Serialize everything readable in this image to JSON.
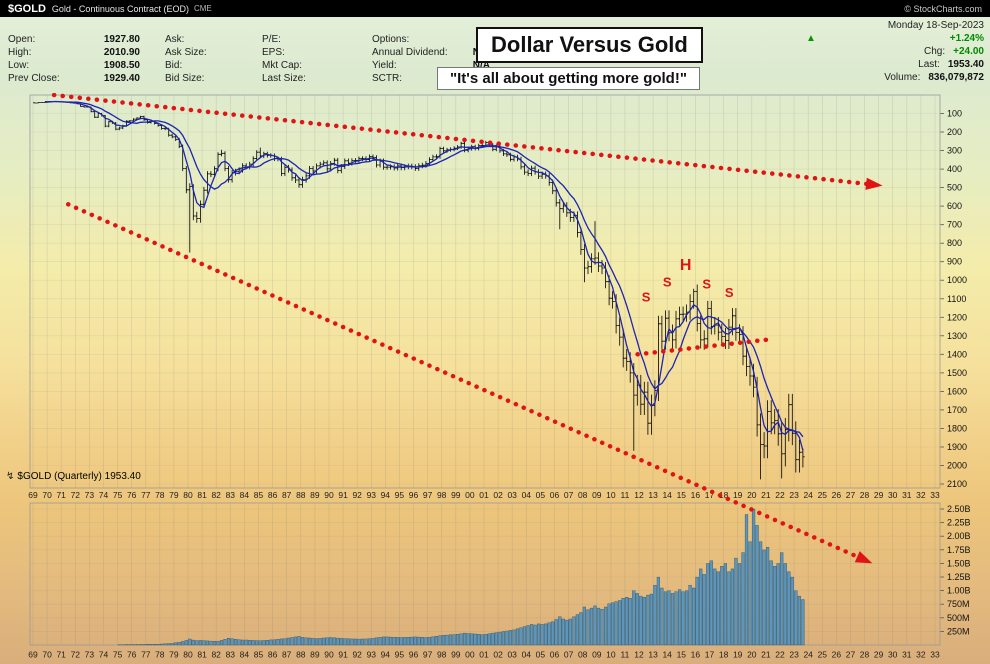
{
  "header": {
    "symbol": "$GOLD",
    "name": "Gold - Continuous Contract (EOD)",
    "exchange": "CME",
    "brand": "© StockCharts.com"
  },
  "overlay": {
    "title": "Dollar Versus Gold",
    "quote_text": "\"It's all about getting more gold!\""
  },
  "footer": {
    "label": "$GOLD (Quarterly) 1953.40"
  },
  "icons": {
    "up_triangle": "▲",
    "chart_type": "↯"
  },
  "info": {
    "col1": [
      {
        "label": "Open:",
        "value": "1927.80"
      },
      {
        "label": "High:",
        "value": "2010.90"
      },
      {
        "label": "Low:",
        "value": "1908.50"
      },
      {
        "label": "Prev Close:",
        "value": "1929.40"
      }
    ],
    "col2": [
      {
        "label": "Ask:",
        "value": ""
      },
      {
        "label": "Ask Size:",
        "value": ""
      },
      {
        "label": "Bid:",
        "value": ""
      },
      {
        "label": "Bid Size:",
        "value": ""
      }
    ],
    "col3": [
      {
        "label": "P/E:",
        "value": ""
      },
      {
        "label": "EPS:",
        "value": ""
      },
      {
        "label": "Mkt Cap:",
        "value": ""
      },
      {
        "label": "Last Size:",
        "value": ""
      }
    ],
    "col4": [
      {
        "label": "Options:",
        "value": "no"
      },
      {
        "label": "Annual Dividend:",
        "value": "N/A"
      },
      {
        "label": "Yield:",
        "value": "N/A"
      },
      {
        "label": "SCTR:",
        "value": ""
      }
    ],
    "right": {
      "date": "Monday 18-Sep-2023",
      "pct_change": "+1.24%",
      "chg_label": "Chg:",
      "chg_value": "+24.00",
      "last_label": "Last:",
      "last_value": "1953.40",
      "vol_label": "Volume:",
      "vol_value": "836,079,872"
    }
  },
  "chart_data": {
    "type": "ohlc",
    "symbol": "$GOLD",
    "period": "Quarterly",
    "title": "Dollar Versus Gold",
    "axis_note": "y-axis inverted: gold price increases downward",
    "start_year": 1969,
    "end_year_axis": 2033,
    "y_ticks": [
      100,
      200,
      300,
      400,
      500,
      600,
      700,
      800,
      900,
      1000,
      1100,
      1200,
      1300,
      1400,
      1500,
      1600,
      1700,
      1800,
      1900,
      2000,
      2100
    ],
    "volume_ticks": [
      {
        "v": 2500,
        "label": "2.50B"
      },
      {
        "v": 2250,
        "label": "2.25B"
      },
      {
        "v": 2000,
        "label": "2.00B"
      },
      {
        "v": 1750,
        "label": "1.75B"
      },
      {
        "v": 1500,
        "label": "1.50B"
      },
      {
        "v": 1250,
        "label": "1.25B"
      },
      {
        "v": 1000,
        "label": "1.00B"
      },
      {
        "v": 750,
        "label": "750M"
      },
      {
        "v": 500,
        "label": "500M"
      },
      {
        "v": 250,
        "label": "250M"
      }
    ],
    "x_ticks": [
      "69",
      "70",
      "71",
      "72",
      "73",
      "74",
      "75",
      "76",
      "77",
      "78",
      "79",
      "80",
      "81",
      "82",
      "83",
      "84",
      "85",
      "86",
      "87",
      "88",
      "89",
      "90",
      "91",
      "92",
      "93",
      "94",
      "95",
      "96",
      "97",
      "98",
      "99",
      "00",
      "01",
      "02",
      "03",
      "04",
      "05",
      "06",
      "07",
      "08",
      "09",
      "10",
      "11",
      "12",
      "13",
      "14",
      "15",
      "16",
      "17",
      "18",
      "19",
      "20",
      "21",
      "22",
      "23",
      "24",
      "25",
      "26",
      "27",
      "28",
      "29",
      "30",
      "31",
      "32",
      "33"
    ],
    "first_open": 42,
    "closes": [
      43,
      41,
      40,
      35,
      35,
      35,
      36,
      37,
      39,
      40,
      42,
      44,
      48,
      62,
      65,
      65,
      90,
      120,
      100,
      112,
      168,
      144,
      151,
      184,
      178,
      166,
      141,
      140,
      130,
      124,
      116,
      134,
      149,
      143,
      154,
      165,
      181,
      183,
      217,
      226,
      240,
      277,
      397,
      512,
      494,
      653,
      666,
      590,
      514,
      426,
      428,
      398,
      320,
      315,
      397,
      457,
      420,
      413,
      405,
      382,
      388,
      373,
      343,
      309,
      329,
      317,
      326,
      327,
      344,
      346,
      423,
      391,
      405,
      447,
      459,
      484,
      457,
      437,
      397,
      410,
      383,
      373,
      366,
      399,
      369,
      352,
      408,
      386,
      355,
      368,
      354,
      353,
      344,
      343,
      349,
      333,
      337,
      378,
      355,
      390,
      389,
      388,
      394,
      383,
      392,
      387,
      384,
      387,
      396,
      382,
      379,
      369,
      348,
      334,
      332,
      289,
      301,
      296,
      293,
      287,
      280,
      261,
      299,
      290,
      278,
      289,
      273,
      272,
      257,
      270,
      293,
      277,
      301,
      318,
      323,
      347,
      334,
      346,
      388,
      416,
      423,
      395,
      415,
      438,
      428,
      437,
      473,
      517,
      582,
      614,
      599,
      636,
      662,
      651,
      743,
      834,
      934,
      927,
      885,
      880,
      923,
      934,
      1008,
      1097,
      1114,
      1244,
      1307,
      1421,
      1439,
      1500,
      1620,
      1566,
      1669,
      1604,
      1772,
      1676,
      1596,
      1235,
      1329,
      1205,
      1284,
      1322,
      1208,
      1184,
      1183,
      1172,
      1115,
      1060,
      1233,
      1322,
      1316,
      1152,
      1249,
      1242,
      1280,
      1303,
      1325,
      1253,
      1192,
      1282,
      1293,
      1410,
      1466,
      1517,
      1577,
      1781,
      1886,
      1895,
      1708,
      1770,
      1757,
      1829,
      1937,
      1807,
      1672,
      1826,
      1969,
      1929,
      1953.4
    ],
    "bar_overrides": [
      {
        "i": 44,
        "high": 850
      },
      {
        "i": 45,
        "low": 482
      },
      {
        "i": 53,
        "low": 296
      },
      {
        "i": 64,
        "low": 284
      },
      {
        "i": 122,
        "low": 252
      },
      {
        "i": 149,
        "high": 725
      },
      {
        "i": 156,
        "high": 1011
      },
      {
        "i": 159,
        "low": 681
      },
      {
        "i": 170,
        "high": 1920
      },
      {
        "i": 187,
        "low": 1046
      },
      {
        "i": 190,
        "high": 1375
      },
      {
        "i": 204,
        "low": 1451
      },
      {
        "i": 206,
        "high": 2075
      },
      {
        "i": 212,
        "high": 2070
      },
      {
        "i": 218,
        "open": 1927.8,
        "high": 2010.9,
        "low": 1908.5,
        "close": 1953.4
      }
    ],
    "volumes_millions": [
      0,
      0,
      0,
      0,
      0,
      0,
      0,
      0,
      0,
      0,
      0,
      0,
      0,
      0,
      0,
      0,
      0,
      0,
      0,
      0,
      0,
      0,
      0,
      0,
      5,
      6,
      7,
      8,
      8,
      9,
      10,
      11,
      12,
      13,
      14,
      15,
      18,
      22,
      26,
      30,
      40,
      50,
      65,
      85,
      110,
      90,
      80,
      85,
      80,
      75,
      72,
      70,
      68,
      85,
      105,
      125,
      115,
      105,
      98,
      92,
      92,
      88,
      84,
      80,
      78,
      82,
      88,
      93,
      98,
      104,
      112,
      118,
      128,
      138,
      148,
      158,
      140,
      134,
      128,
      122,
      118,
      122,
      128,
      133,
      138,
      132,
      127,
      122,
      118,
      115,
      112,
      110,
      108,
      110,
      113,
      116,
      122,
      132,
      142,
      148,
      148,
      146,
      143,
      140,
      138,
      140,
      143,
      146,
      148,
      146,
      142,
      138,
      142,
      152,
      162,
      172,
      178,
      182,
      188,
      192,
      198,
      208,
      218,
      212,
      208,
      202,
      197,
      192,
      198,
      208,
      218,
      228,
      238,
      248,
      258,
      268,
      278,
      298,
      318,
      338,
      358,
      378,
      368,
      388,
      378,
      388,
      408,
      428,
      468,
      518,
      478,
      458,
      478,
      518,
      558,
      598,
      698,
      648,
      678,
      718,
      678,
      658,
      698,
      758,
      778,
      798,
      818,
      858,
      878,
      858,
      998,
      948,
      898,
      878,
      918,
      938,
      1098,
      1248,
      1048,
      978,
      998,
      948,
      978,
      1018,
      978,
      998,
      1098,
      1048,
      1248,
      1398,
      1298,
      1498,
      1548,
      1398,
      1348,
      1448,
      1498,
      1348,
      1398,
      1598,
      1498,
      1698,
      2398,
      1898,
      2498,
      2198,
      1898,
      1748,
      1798,
      1548,
      1448,
      1498,
      1698,
      1498,
      1348,
      1248,
      998,
      898,
      836
    ],
    "moving_averages": [
      {
        "type": "sma",
        "period": 4
      },
      {
        "type": "sma",
        "period": 10
      }
    ],
    "annotations": {
      "trendlines": [
        {
          "from": {
            "year": 1970.5,
            "value": 0
          },
          "to": {
            "year": 2029.0,
            "value": 487
          },
          "arrow": true
        },
        {
          "from": {
            "year": 1971.5,
            "value": 590
          },
          "to": {
            "year": 2028.3,
            "value": 2520
          },
          "arrow": true
        },
        {
          "from": {
            "year": 2011.9,
            "value": 1400
          },
          "to": {
            "year": 2021.2,
            "value": 1320
          },
          "arrow": false
        }
      ],
      "pattern_labels": [
        {
          "text": "S",
          "year": 2012.5,
          "value": 1115
        },
        {
          "text": "S",
          "year": 2014.0,
          "value": 1035
        },
        {
          "text": "H",
          "year": 2015.3,
          "value": 945
        },
        {
          "text": "S",
          "year": 2016.8,
          "value": 1045
        },
        {
          "text": "S",
          "year": 2018.4,
          "value": 1090
        }
      ]
    },
    "colors": {
      "bars": "#000000",
      "ma": "#1c24b4",
      "volume_fill": "#5e95ba",
      "volume_edge": "#27536e",
      "annotation_red": "#e01414",
      "grid": "rgba(110,110,110,0.22)",
      "grid_h": "rgba(120,120,120,0.15)",
      "axis_text": "#111111"
    }
  }
}
